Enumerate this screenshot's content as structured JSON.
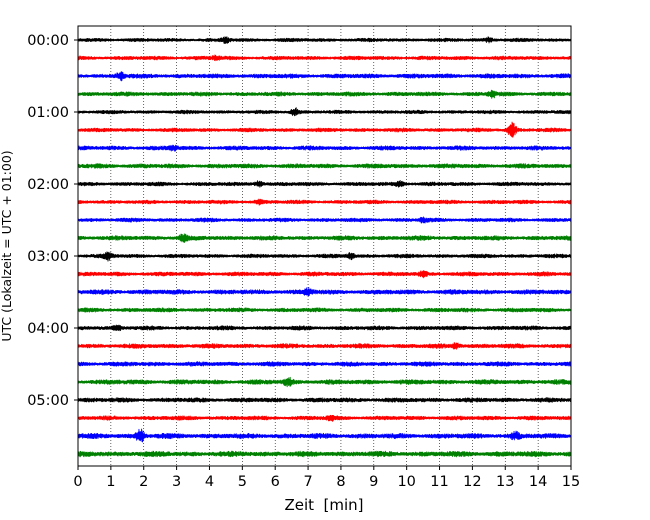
{
  "chart_data": {
    "type": "line",
    "chart_kind": "helicorder seismogram",
    "xlabel": "Zeit  [min]",
    "ylabel": "UTC (Lokalzeit = UTC + 01:00)",
    "xlim": [
      0,
      15
    ],
    "x_ticks": [
      "0",
      "1",
      "2",
      "3",
      "4",
      "5",
      "6",
      "7",
      "8",
      "9",
      "10",
      "11",
      "12",
      "13",
      "14",
      "15"
    ],
    "y_tick_labels": [
      "00:00",
      "01:00",
      "02:00",
      "03:00",
      "04:00",
      "05:00"
    ],
    "grid": "vertical dotted lines at each minute",
    "trace_color_cycle": [
      "#000000",
      "#ff0000",
      "#0000ff",
      "#008000"
    ],
    "traces_per_hour": 4,
    "trace_count": 24,
    "trace_amplitude_scale": [
      0.55,
      0.6,
      0.7,
      0.65,
      0.55,
      0.6,
      0.65,
      0.7,
      0.6,
      0.6,
      0.6,
      0.7,
      0.6,
      0.65,
      0.75,
      0.65,
      0.65,
      0.7,
      0.7,
      0.75,
      0.7,
      0.65,
      0.8,
      0.85
    ],
    "bursts": [
      {
        "trace": 0,
        "minute": 4.5,
        "level": 1.6
      },
      {
        "trace": 0,
        "minute": 12.5,
        "level": 1.5
      },
      {
        "trace": 1,
        "minute": 4.2,
        "level": 1.4
      },
      {
        "trace": 2,
        "minute": 1.3,
        "level": 1.8
      },
      {
        "trace": 3,
        "minute": 12.6,
        "level": 1.7
      },
      {
        "trace": 4,
        "minute": 6.6,
        "level": 1.8
      },
      {
        "trace": 5,
        "minute": 13.2,
        "level": 2.6
      },
      {
        "trace": 6,
        "minute": 2.9,
        "level": 1.5
      },
      {
        "trace": 8,
        "minute": 5.5,
        "level": 1.6
      },
      {
        "trace": 8,
        "minute": 9.8,
        "level": 1.6
      },
      {
        "trace": 9,
        "minute": 5.5,
        "level": 1.4
      },
      {
        "trace": 10,
        "minute": 10.5,
        "level": 1.4
      },
      {
        "trace": 11,
        "minute": 3.2,
        "level": 1.7
      },
      {
        "trace": 12,
        "minute": 0.9,
        "level": 1.8
      },
      {
        "trace": 12,
        "minute": 8.3,
        "level": 1.6
      },
      {
        "trace": 13,
        "minute": 10.5,
        "level": 1.5
      },
      {
        "trace": 14,
        "minute": 7.0,
        "level": 1.6
      },
      {
        "trace": 16,
        "minute": 1.2,
        "level": 1.5
      },
      {
        "trace": 17,
        "minute": 11.5,
        "level": 1.5
      },
      {
        "trace": 19,
        "minute": 6.4,
        "level": 1.9
      },
      {
        "trace": 21,
        "minute": 7.7,
        "level": 1.4
      },
      {
        "trace": 22,
        "minute": 1.9,
        "level": 2.4
      },
      {
        "trace": 22,
        "minute": 13.3,
        "level": 1.7
      }
    ]
  }
}
